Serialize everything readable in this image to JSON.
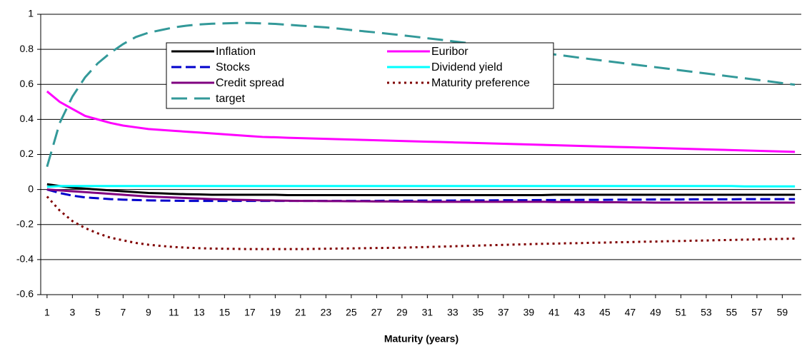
{
  "chart_data": {
    "type": "line",
    "x_label": "Maturity (years)",
    "x": [
      1,
      2,
      3,
      4,
      5,
      6,
      7,
      8,
      9,
      10,
      11,
      12,
      13,
      14,
      15,
      16,
      17,
      18,
      19,
      20,
      21,
      22,
      23,
      24,
      25,
      26,
      27,
      28,
      29,
      30,
      31,
      32,
      33,
      34,
      35,
      36,
      37,
      38,
      39,
      40,
      41,
      42,
      43,
      44,
      45,
      46,
      47,
      48,
      49,
      50,
      51,
      52,
      53,
      54,
      55,
      56,
      57,
      58,
      59,
      60
    ],
    "xlim": [
      0.5,
      60.5
    ],
    "xticks": [
      1,
      3,
      5,
      7,
      9,
      11,
      13,
      15,
      17,
      19,
      21,
      23,
      25,
      27,
      29,
      31,
      33,
      35,
      37,
      39,
      41,
      43,
      45,
      47,
      49,
      51,
      53,
      55,
      57,
      59
    ],
    "ylim": [
      -0.6,
      1
    ],
    "yticks": [
      -0.6,
      -0.4,
      -0.2,
      0,
      0.2,
      0.4,
      0.6,
      0.8,
      1
    ],
    "grid": true,
    "legend": "top-left",
    "series": [
      {
        "name": "Inflation",
        "color": "#000000",
        "dash": "solid",
        "values": [
          0.03,
          0.02,
          0.01,
          0.005,
          0,
          -0.005,
          -0.01,
          -0.015,
          -0.02,
          -0.022,
          -0.025,
          -0.027,
          -0.028,
          -0.03,
          -0.03,
          -0.03,
          -0.03,
          -0.03,
          -0.03,
          -0.032,
          -0.032,
          -0.032,
          -0.032,
          -0.032,
          -0.032,
          -0.032,
          -0.032,
          -0.032,
          -0.032,
          -0.032,
          -0.032,
          -0.032,
          -0.032,
          -0.032,
          -0.032,
          -0.032,
          -0.032,
          -0.032,
          -0.032,
          -0.032,
          -0.03,
          -0.03,
          -0.03,
          -0.03,
          -0.03,
          -0.03,
          -0.03,
          -0.03,
          -0.03,
          -0.03,
          -0.03,
          -0.03,
          -0.03,
          -0.03,
          -0.03,
          -0.03,
          -0.03,
          -0.03,
          -0.03,
          -0.03
        ]
      },
      {
        "name": "Euribor",
        "color": "#ff00ff",
        "dash": "solid",
        "values": [
          0.56,
          0.5,
          0.46,
          0.42,
          0.4,
          0.38,
          0.365,
          0.355,
          0.345,
          0.34,
          0.335,
          0.33,
          0.325,
          0.32,
          0.315,
          0.31,
          0.305,
          0.3,
          0.298,
          0.295,
          0.293,
          0.291,
          0.289,
          0.287,
          0.285,
          0.283,
          0.281,
          0.279,
          0.277,
          0.275,
          0.273,
          0.271,
          0.269,
          0.267,
          0.265,
          0.263,
          0.261,
          0.259,
          0.257,
          0.255,
          0.253,
          0.251,
          0.249,
          0.247,
          0.245,
          0.243,
          0.241,
          0.239,
          0.237,
          0.235,
          0.233,
          0.231,
          0.229,
          0.227,
          0.225,
          0.223,
          0.221,
          0.219,
          0.217,
          0.215
        ]
      },
      {
        "name": "Stocks",
        "color": "#0000cc",
        "dash": "dashed",
        "values": [
          0,
          -0.02,
          -0.035,
          -0.045,
          -0.05,
          -0.055,
          -0.058,
          -0.06,
          -0.062,
          -0.063,
          -0.064,
          -0.065,
          -0.065,
          -0.065,
          -0.065,
          -0.065,
          -0.065,
          -0.065,
          -0.065,
          -0.065,
          -0.065,
          -0.065,
          -0.065,
          -0.065,
          -0.065,
          -0.065,
          -0.065,
          -0.064,
          -0.064,
          -0.064,
          -0.063,
          -0.063,
          -0.063,
          -0.062,
          -0.062,
          -0.062,
          -0.061,
          -0.061,
          -0.061,
          -0.06,
          -0.06,
          -0.06,
          -0.059,
          -0.059,
          -0.059,
          -0.058,
          -0.058,
          -0.058,
          -0.057,
          -0.057,
          -0.057,
          -0.056,
          -0.056,
          -0.056,
          -0.056,
          -0.055,
          -0.055,
          -0.055,
          -0.055,
          -0.055
        ]
      },
      {
        "name": "Dividend yield",
        "color": "#00ffff",
        "dash": "solid",
        "values": [
          0.015,
          0.02,
          0.02,
          0.02,
          0.02,
          0.02,
          0.02,
          0.02,
          0.02,
          0.02,
          0.02,
          0.02,
          0.02,
          0.02,
          0.02,
          0.02,
          0.02,
          0.02,
          0.02,
          0.02,
          0.02,
          0.02,
          0.02,
          0.02,
          0.02,
          0.02,
          0.02,
          0.02,
          0.02,
          0.02,
          0.02,
          0.02,
          0.02,
          0.02,
          0.02,
          0.02,
          0.02,
          0.02,
          0.02,
          0.02,
          0.02,
          0.02,
          0.02,
          0.02,
          0.02,
          0.02,
          0.02,
          0.02,
          0.02,
          0.02,
          0.02,
          0.02,
          0.02,
          0.02,
          0.02,
          0.018,
          0.018,
          0.018,
          0.018,
          0.018
        ]
      },
      {
        "name": "Credit spread",
        "color": "#800080",
        "dash": "solid",
        "values": [
          0,
          -0.005,
          -0.01,
          -0.015,
          -0.02,
          -0.025,
          -0.03,
          -0.035,
          -0.04,
          -0.043,
          -0.046,
          -0.049,
          -0.052,
          -0.055,
          -0.057,
          -0.059,
          -0.06,
          -0.062,
          -0.063,
          -0.064,
          -0.065,
          -0.065,
          -0.066,
          -0.066,
          -0.067,
          -0.067,
          -0.068,
          -0.068,
          -0.069,
          -0.069,
          -0.07,
          -0.07,
          -0.07,
          -0.07,
          -0.07,
          -0.07,
          -0.07,
          -0.07,
          -0.07,
          -0.07,
          -0.071,
          -0.071,
          -0.072,
          -0.072,
          -0.073,
          -0.073,
          -0.074,
          -0.074,
          -0.075,
          -0.075,
          -0.075,
          -0.075,
          -0.075,
          -0.075,
          -0.075,
          -0.075,
          -0.075,
          -0.075,
          -0.075,
          -0.075
        ]
      },
      {
        "name": "Maturity preference",
        "color": "#800000",
        "dash": "dotted",
        "values": [
          -0.04,
          -0.12,
          -0.18,
          -0.22,
          -0.25,
          -0.275,
          -0.29,
          -0.305,
          -0.315,
          -0.322,
          -0.328,
          -0.332,
          -0.335,
          -0.337,
          -0.338,
          -0.339,
          -0.34,
          -0.34,
          -0.34,
          -0.34,
          -0.34,
          -0.339,
          -0.338,
          -0.337,
          -0.336,
          -0.335,
          -0.334,
          -0.333,
          -0.332,
          -0.33,
          -0.328,
          -0.326,
          -0.324,
          -0.322,
          -0.32,
          -0.318,
          -0.316,
          -0.314,
          -0.312,
          -0.31,
          -0.309,
          -0.307,
          -0.306,
          -0.304,
          -0.303,
          -0.301,
          -0.3,
          -0.298,
          -0.297,
          -0.295,
          -0.294,
          -0.292,
          -0.291,
          -0.289,
          -0.288,
          -0.286,
          -0.285,
          -0.283,
          -0.282,
          -0.28
        ]
      },
      {
        "name": "target",
        "color": "#339999",
        "dash": "longdash",
        "values": [
          0.13,
          0.38,
          0.53,
          0.64,
          0.72,
          0.78,
          0.83,
          0.87,
          0.895,
          0.91,
          0.925,
          0.935,
          0.942,
          0.946,
          0.948,
          0.95,
          0.95,
          0.948,
          0.945,
          0.94,
          0.935,
          0.93,
          0.925,
          0.918,
          0.91,
          0.903,
          0.896,
          0.888,
          0.88,
          0.872,
          0.863,
          0.855,
          0.846,
          0.837,
          0.828,
          0.819,
          0.81,
          0.8,
          0.79,
          0.78,
          0.771,
          0.762,
          0.752,
          0.743,
          0.734,
          0.725,
          0.716,
          0.707,
          0.698,
          0.689,
          0.68,
          0.671,
          0.662,
          0.653,
          0.644,
          0.635,
          0.626,
          0.617,
          0.607,
          0.598
        ]
      }
    ]
  }
}
